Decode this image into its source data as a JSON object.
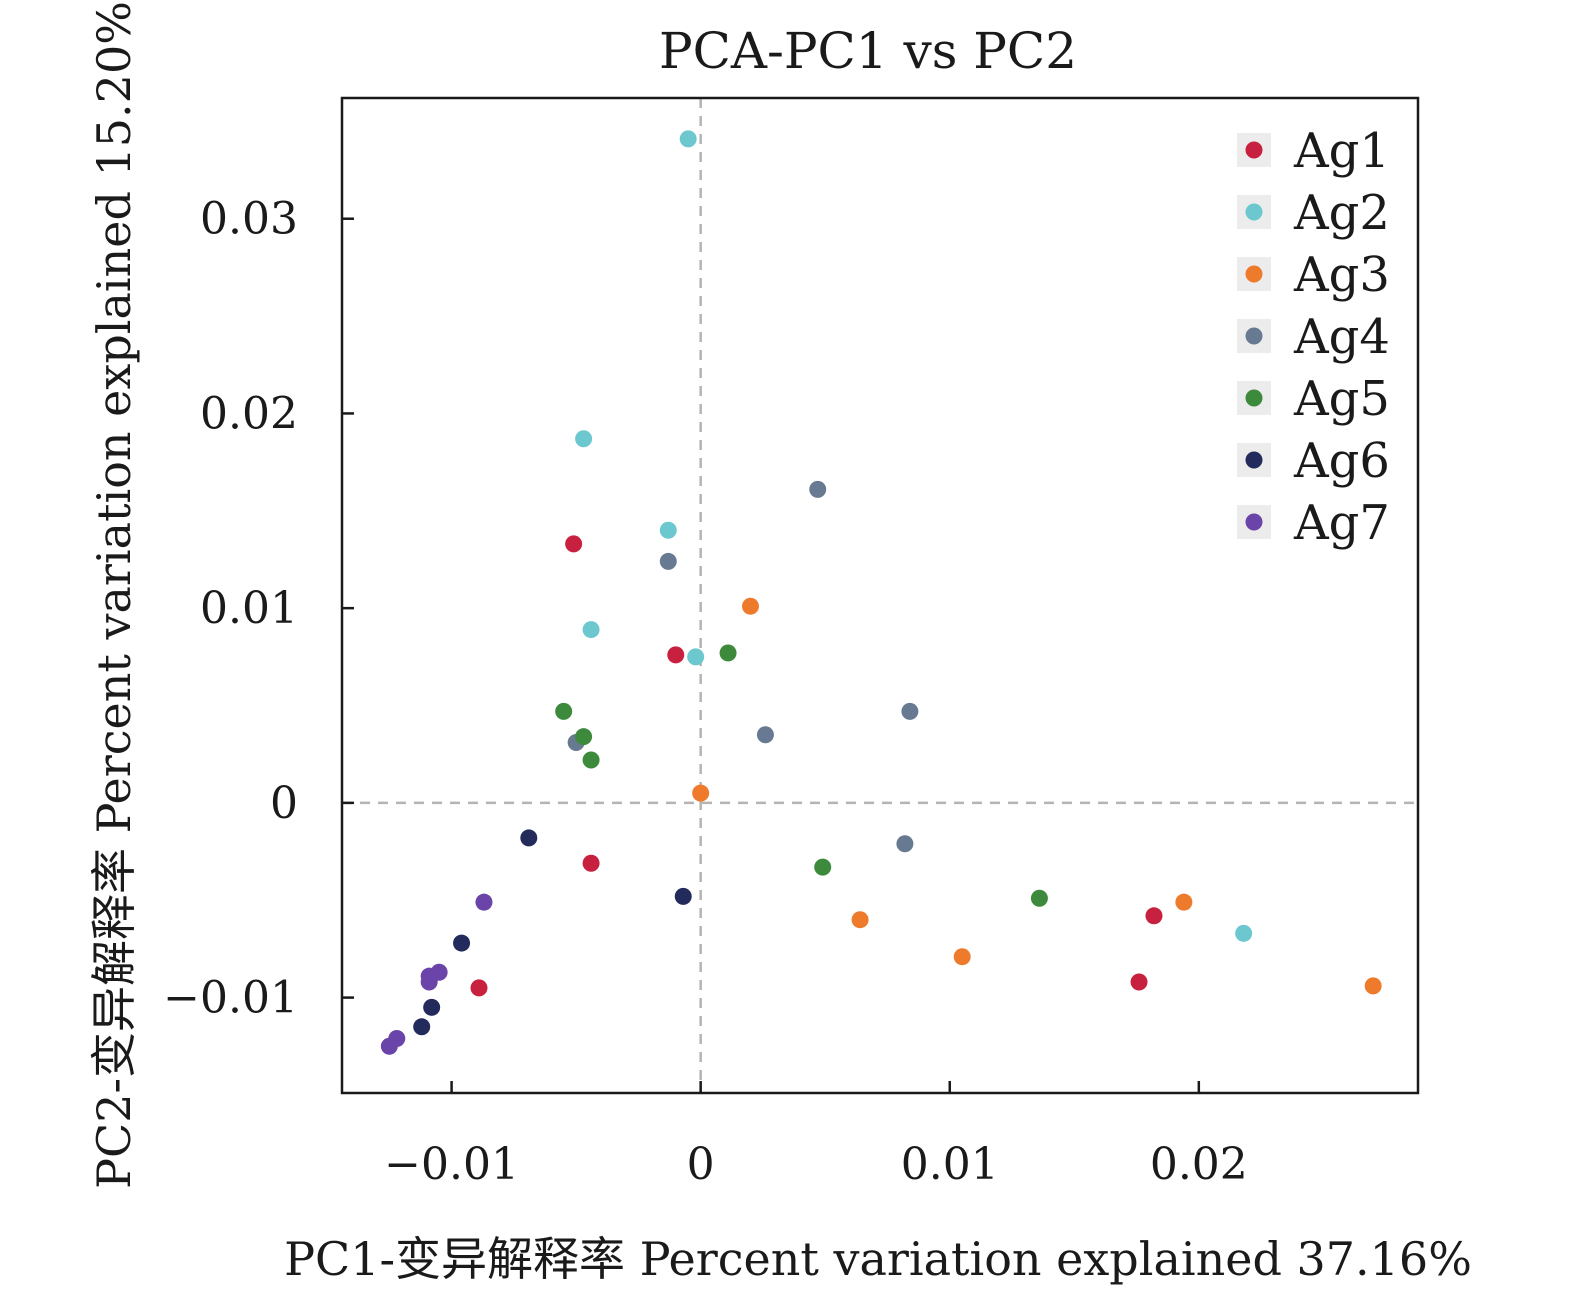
{
  "chart_data": {
    "type": "scatter",
    "title": "PCA-PC1 vs PC2",
    "xlabel": "PC1-变异解释率 Percent variation explained 37.16%",
    "ylabel": "PC2-变异解释率 Percent variation explained 15.20%",
    "xlim": [
      -0.0144,
      0.0288
    ],
    "ylim": [
      -0.0149,
      0.0362
    ],
    "x_ticks": [
      -0.01,
      0,
      0.01,
      0.02
    ],
    "x_tick_labels": [
      "−0.01",
      "0",
      "0.01",
      "0.02"
    ],
    "y_ticks": [
      -0.01,
      0,
      0.01,
      0.02,
      0.03
    ],
    "y_tick_labels": [
      "−0.01",
      "0",
      "0.01",
      "0.02",
      "0.03"
    ],
    "reference_lines": {
      "x": 0,
      "y": 0,
      "style": "dashed"
    },
    "legend_position": "top-right",
    "series": [
      {
        "name": "Ag1",
        "color": "#c8203f",
        "points": [
          [
            -0.0051,
            0.0133
          ],
          [
            -0.001,
            0.0076
          ],
          [
            -0.0044,
            -0.0031
          ],
          [
            -0.0089,
            -0.0095
          ],
          [
            0.0182,
            -0.0058
          ],
          [
            0.0176,
            -0.0092
          ]
        ]
      },
      {
        "name": "Ag2",
        "color": "#6cc7cf",
        "points": [
          [
            -0.0005,
            0.0341
          ],
          [
            -0.0047,
            0.0187
          ],
          [
            -0.0013,
            0.014
          ],
          [
            -0.0044,
            0.0089
          ],
          [
            -0.0002,
            0.0075
          ],
          [
            0.0218,
            -0.0067
          ]
        ]
      },
      {
        "name": "Ag3",
        "color": "#ee7a2c",
        "points": [
          [
            0.002,
            0.0101
          ],
          [
            0.0,
            0.0005
          ],
          [
            0.0064,
            -0.006
          ],
          [
            0.0105,
            -0.0079
          ],
          [
            0.0194,
            -0.0051
          ],
          [
            0.027,
            -0.0094
          ]
        ]
      },
      {
        "name": "Ag4",
        "color": "#687a92",
        "points": [
          [
            0.0047,
            0.0161
          ],
          [
            -0.0013,
            0.0124
          ],
          [
            0.0084,
            0.0047
          ],
          [
            0.0026,
            0.0035
          ],
          [
            -0.005,
            0.0031
          ],
          [
            0.0082,
            -0.0021
          ]
        ]
      },
      {
        "name": "Ag5",
        "color": "#3d8a3d",
        "points": [
          [
            0.0011,
            0.0077
          ],
          [
            -0.0055,
            0.0047
          ],
          [
            -0.0047,
            0.0034
          ],
          [
            -0.0044,
            0.0022
          ],
          [
            0.0049,
            -0.0033
          ],
          [
            0.0136,
            -0.0049
          ]
        ]
      },
      {
        "name": "Ag6",
        "color": "#232b5c",
        "points": [
          [
            -0.0069,
            -0.0018
          ],
          [
            -0.0007,
            -0.0048
          ],
          [
            -0.0096,
            -0.0072
          ],
          [
            -0.0108,
            -0.0105
          ],
          [
            -0.0112,
            -0.0115
          ]
        ]
      },
      {
        "name": "Ag7",
        "color": "#6a44a8",
        "points": [
          [
            -0.0087,
            -0.0051
          ],
          [
            -0.0105,
            -0.0087
          ],
          [
            -0.0109,
            -0.0089
          ],
          [
            -0.0109,
            -0.0092
          ],
          [
            -0.0122,
            -0.0121
          ],
          [
            -0.0125,
            -0.0125
          ]
        ]
      }
    ]
  }
}
